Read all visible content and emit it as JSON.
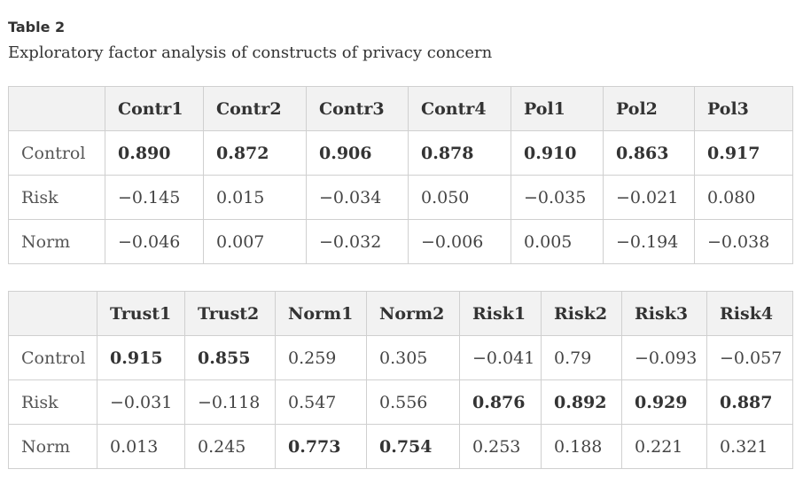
{
  "table_label": "Table 2",
  "caption": "Exploratory factor analysis of constructs of privacy concern",
  "table_a": {
    "columns": [
      "",
      "Contr1",
      "Contr2",
      "Contr3",
      "Contr4",
      "Pol1",
      "Pol2",
      "Pol3"
    ],
    "rows": [
      {
        "label": "Control",
        "cells": [
          "0.890",
          "0.872",
          "0.906",
          "0.878",
          "0.910",
          "0.863",
          "0.917"
        ],
        "bold": [
          true,
          true,
          true,
          true,
          true,
          true,
          true
        ]
      },
      {
        "label": "Risk",
        "cells": [
          "−0.145",
          "0.015",
          "−0.034",
          "0.050",
          "−0.035",
          "−0.021",
          "0.080"
        ],
        "bold": [
          false,
          false,
          false,
          false,
          false,
          false,
          false
        ]
      },
      {
        "label": "Norm",
        "cells": [
          "−0.046",
          "0.007",
          "−0.032",
          "−0.006",
          "0.005",
          "−0.194",
          "−0.038"
        ],
        "bold": [
          false,
          false,
          false,
          false,
          false,
          false,
          false
        ]
      }
    ]
  },
  "table_b": {
    "columns": [
      "",
      "Trust1",
      "Trust2",
      "Norm1",
      "Norm2",
      "Risk1",
      "Risk2",
      "Risk3",
      "Risk4"
    ],
    "rows": [
      {
        "label": "Control",
        "cells": [
          "0.915",
          "0.855",
          "0.259",
          "0.305",
          "−0.041",
          "0.79",
          "−0.093",
          "−0.057"
        ],
        "bold": [
          true,
          true,
          false,
          false,
          false,
          false,
          false,
          false
        ]
      },
      {
        "label": "Risk",
        "cells": [
          "−0.031",
          "−0.118",
          "0.547",
          "0.556",
          "0.876",
          "0.892",
          "0.929",
          "0.887"
        ],
        "bold": [
          false,
          false,
          false,
          false,
          true,
          true,
          true,
          true
        ]
      },
      {
        "label": "Norm",
        "cells": [
          "0.013",
          "0.245",
          "0.773",
          "0.754",
          "0.253",
          "0.188",
          "0.221",
          "0.321"
        ],
        "bold": [
          false,
          false,
          true,
          true,
          false,
          false,
          false,
          false
        ]
      }
    ]
  }
}
